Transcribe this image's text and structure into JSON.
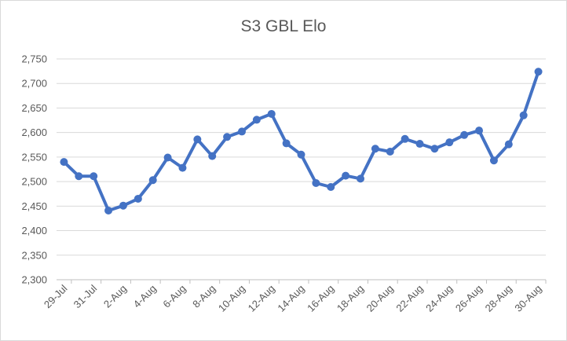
{
  "chart_data": {
    "type": "line",
    "title": "S3 GBL Elo",
    "xlabel": "",
    "ylabel": "",
    "ylim": [
      2300,
      2750
    ],
    "yticks": [
      "2,300",
      "2,350",
      "2,400",
      "2,450",
      "2,500",
      "2,550",
      "2,600",
      "2,650",
      "2,700",
      "2,750"
    ],
    "grid": "horizontal",
    "legend": "none",
    "color": "#4472c4",
    "x_tick_labels": [
      "29-Jul",
      "31-Jul",
      "2-Aug",
      "4-Aug",
      "6-Aug",
      "8-Aug",
      "10-Aug",
      "12-Aug",
      "14-Aug",
      "16-Aug",
      "18-Aug",
      "20-Aug",
      "22-Aug",
      "24-Aug",
      "26-Aug",
      "28-Aug",
      "30-Aug"
    ],
    "x": [
      "29-Jul",
      "30-Jul",
      "31-Jul",
      "1-Aug",
      "2-Aug",
      "3-Aug",
      "4-Aug",
      "5-Aug",
      "6-Aug",
      "7-Aug",
      "8-Aug",
      "9-Aug",
      "10-Aug",
      "11-Aug",
      "12-Aug",
      "13-Aug",
      "14-Aug",
      "15-Aug",
      "16-Aug",
      "17-Aug",
      "18-Aug",
      "19-Aug",
      "20-Aug",
      "21-Aug",
      "22-Aug",
      "23-Aug",
      "24-Aug",
      "25-Aug",
      "26-Aug",
      "27-Aug",
      "28-Aug",
      "29-Aug",
      "30-Aug"
    ],
    "values": [
      2540,
      2511,
      2511,
      2441,
      2451,
      2465,
      2503,
      2549,
      2528,
      2586,
      2552,
      2591,
      2602,
      2626,
      2638,
      2578,
      2555,
      2497,
      2489,
      2512,
      2506,
      2567,
      2561,
      2587,
      2577,
      2567,
      2580,
      2595,
      2604,
      2543,
      2576,
      2635,
      2724
    ]
  }
}
